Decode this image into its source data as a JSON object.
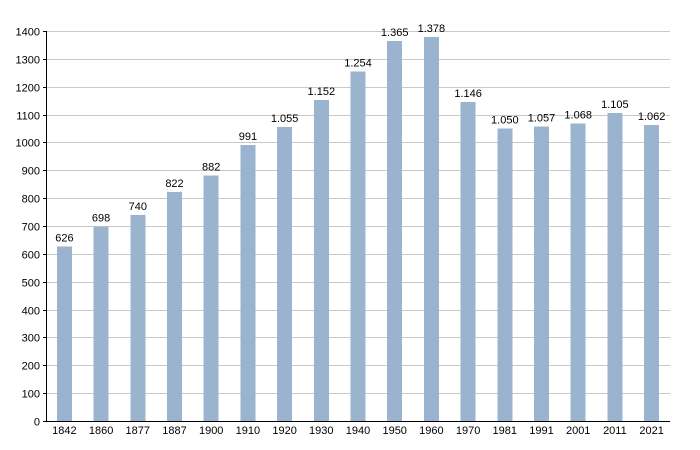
{
  "chart_data": {
    "type": "bar",
    "categories": [
      "1842",
      "1860",
      "1877",
      "1887",
      "1900",
      "1910",
      "1920",
      "1930",
      "1940",
      "1950",
      "1960",
      "1970",
      "1981",
      "1991",
      "2001",
      "2011",
      "2021"
    ],
    "values": [
      626,
      698,
      740,
      822,
      882,
      991,
      1055,
      1152,
      1254,
      1365,
      1378,
      1146,
      1050,
      1057,
      1068,
      1105,
      1062
    ],
    "data_labels": [
      "626",
      "698",
      "740",
      "822",
      "882",
      "991",
      "1.055",
      "1.152",
      "1.254",
      "1.365",
      "1.378",
      "1.146",
      "1.050",
      "1.057",
      "1.068",
      "1.105",
      "1.062"
    ],
    "y_ticks": [
      0,
      100,
      200,
      300,
      400,
      500,
      600,
      700,
      800,
      900,
      1000,
      1100,
      1200,
      1300,
      1400
    ],
    "ylim": [
      0,
      1400
    ],
    "title": "",
    "xlabel": "",
    "ylabel": "",
    "grid": true,
    "legend": "none",
    "bar_color": "#9ab3cf",
    "grid_color": "#c8c8c8"
  }
}
